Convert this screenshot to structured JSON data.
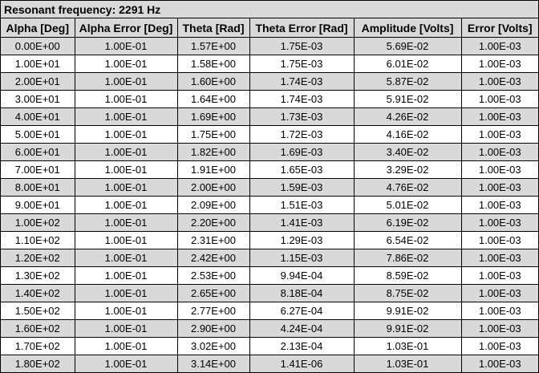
{
  "title": "Resonant frequency: 2291 Hz",
  "columns": [
    "Alpha [Deg]",
    "Alpha Error [Deg]",
    "Theta [Rad]",
    "Theta Error [Rad]",
    "Amplitude [Volts]",
    "Error [Volts]"
  ],
  "rows": [
    [
      "0.00E+00",
      "1.00E-01",
      "1.57E+00",
      "1.75E-03",
      "5.69E-02",
      "1.00E-03"
    ],
    [
      "1.00E+01",
      "1.00E-01",
      "1.58E+00",
      "1.75E-03",
      "6.01E-02",
      "1.00E-03"
    ],
    [
      "2.00E+01",
      "1.00E-01",
      "1.60E+00",
      "1.74E-03",
      "5.87E-02",
      "1.00E-03"
    ],
    [
      "3.00E+01",
      "1.00E-01",
      "1.64E+00",
      "1.74E-03",
      "5.91E-02",
      "1.00E-03"
    ],
    [
      "4.00E+01",
      "1.00E-01",
      "1.69E+00",
      "1.73E-03",
      "4.26E-02",
      "1.00E-03"
    ],
    [
      "5.00E+01",
      "1.00E-01",
      "1.75E+00",
      "1.72E-03",
      "4.16E-02",
      "1.00E-03"
    ],
    [
      "6.00E+01",
      "1.00E-01",
      "1.82E+00",
      "1.69E-03",
      "3.40E-02",
      "1.00E-03"
    ],
    [
      "7.00E+01",
      "1.00E-01",
      "1.91E+00",
      "1.65E-03",
      "3.29E-02",
      "1.00E-03"
    ],
    [
      "8.00E+01",
      "1.00E-01",
      "2.00E+00",
      "1.59E-03",
      "4.76E-02",
      "1.00E-03"
    ],
    [
      "9.00E+01",
      "1.00E-01",
      "2.09E+00",
      "1.51E-03",
      "5.01E-02",
      "1.00E-03"
    ],
    [
      "1.00E+02",
      "1.00E-01",
      "2.20E+00",
      "1.41E-03",
      "6.19E-02",
      "1.00E-03"
    ],
    [
      "1.10E+02",
      "1.00E-01",
      "2.31E+00",
      "1.29E-03",
      "6.54E-02",
      "1.00E-03"
    ],
    [
      "1.20E+02",
      "1.00E-01",
      "2.42E+00",
      "1.15E-03",
      "7.86E-02",
      "1.00E-03"
    ],
    [
      "1.30E+02",
      "1.00E-01",
      "2.53E+00",
      "9.94E-04",
      "8.59E-02",
      "1.00E-03"
    ],
    [
      "1.40E+02",
      "1.00E-01",
      "2.65E+00",
      "8.18E-04",
      "8.75E-02",
      "1.00E-03"
    ],
    [
      "1.50E+02",
      "1.00E-01",
      "2.77E+00",
      "6.27E-04",
      "9.91E-02",
      "1.00E-03"
    ],
    [
      "1.60E+02",
      "1.00E-01",
      "2.90E+00",
      "4.24E-04",
      "9.91E-02",
      "1.00E-03"
    ],
    [
      "1.70E+02",
      "1.00E-01",
      "3.02E+00",
      "2.13E-04",
      "1.03E-01",
      "1.00E-03"
    ],
    [
      "1.80E+02",
      "1.00E-01",
      "3.14E+00",
      "1.41E-06",
      "1.03E-01",
      "1.00E-03"
    ]
  ],
  "colors": {
    "shade": "#d9d9d9",
    "plain": "#ffffff",
    "border": "#000000",
    "text": "#000000"
  }
}
